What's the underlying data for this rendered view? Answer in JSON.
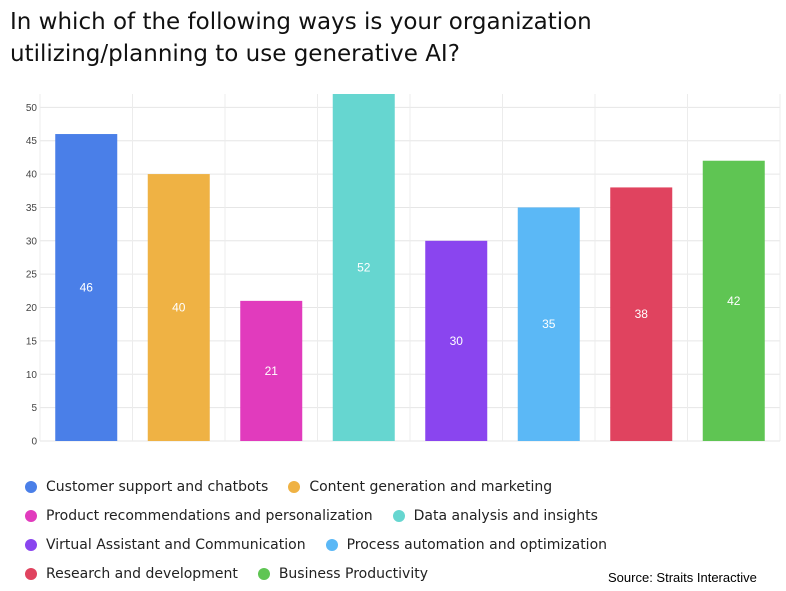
{
  "title": "In which of the following ways is your organization utilizing/planning to use generative AI?",
  "source": "Source: Straits Interactive",
  "chart_data": {
    "type": "bar",
    "categories": [
      "Customer support and chatbots",
      "Content generation and marketing",
      "Product recommendations and personalization",
      "Data analysis and insights",
      "Virtual Assistant and Communication",
      "Process automation and optimization",
      "Research and development",
      "Business Productivity"
    ],
    "values": [
      46,
      40,
      21,
      52,
      30,
      35,
      38,
      42
    ],
    "colors": [
      "#4a7fe8",
      "#efb244",
      "#e13bbd",
      "#66d6d0",
      "#8a45ef",
      "#5bb8f6",
      "#e0435f",
      "#5fc553"
    ],
    "yticks": [
      0,
      5,
      10,
      15,
      20,
      25,
      30,
      35,
      40,
      45,
      50
    ],
    "ylim": [
      0,
      52
    ],
    "grid": true,
    "legend_position": "bottom"
  }
}
